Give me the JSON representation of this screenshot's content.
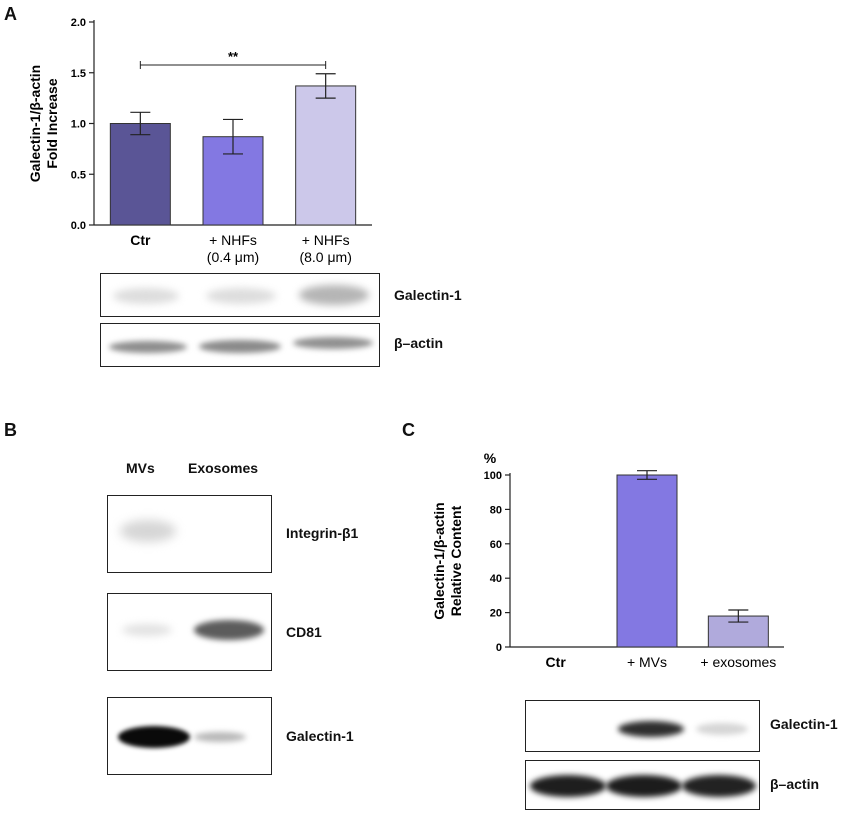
{
  "panels": {
    "a": {
      "letter": "A",
      "blot_labels": [
        "Galectin-1",
        "β–actin"
      ]
    },
    "b": {
      "letter": "B",
      "lane_labels": [
        "MVs",
        "Exosomes"
      ],
      "blot_labels": [
        "Integrin-β1",
        "CD81",
        "Galectin-1"
      ]
    },
    "c": {
      "letter": "C",
      "blot_labels": [
        "Galectin-1",
        "β–actin"
      ]
    }
  },
  "chart_data": [
    {
      "type": "bar",
      "panel": "A",
      "ylabel": "Galectin-1/β-actin Fold Increase",
      "ylabel_lines": [
        "Galectin-1/β-actin",
        "Fold Increase"
      ],
      "categories": [
        "Ctr",
        "+ NHFs (0.4 μm)",
        "+ NHFs (8.0 μm)"
      ],
      "category_lines": [
        [
          "Ctr"
        ],
        [
          "+ NHFs",
          "(0.4 μm)"
        ],
        [
          "+ NHFs",
          "(8.0 μm)"
        ]
      ],
      "values": [
        1.0,
        0.87,
        1.37
      ],
      "errors": [
        0.11,
        0.17,
        0.12
      ],
      "ylim": [
        0,
        2.0
      ],
      "yticks": [
        "0.0",
        "0.5",
        "1.0",
        "1.5",
        "2.0"
      ],
      "significance": {
        "from": 0,
        "to": 2,
        "label": "**"
      },
      "colors": [
        "#5a5596",
        "#8378e2",
        "#ccc8ea"
      ]
    },
    {
      "type": "bar",
      "panel": "C",
      "ylabel": "Galectin-1/β-actin Relative Content",
      "ylabel_lines": [
        "Galectin-1/β-actin",
        "Relative Content"
      ],
      "yunit": "%",
      "categories": [
        "Ctr",
        "+ MVs",
        "+ exosomes"
      ],
      "category_lines": [
        [
          "Ctr"
        ],
        [
          "+ MVs"
        ],
        [
          "+ exosomes"
        ]
      ],
      "values": [
        0,
        100,
        18
      ],
      "errors": [
        0,
        2.5,
        3.5
      ],
      "ylim": [
        0,
        100
      ],
      "yticks": [
        "0",
        "20",
        "40",
        "60",
        "80",
        "100"
      ],
      "colors": [
        "#8378e2",
        "#8378e2",
        "#b0aadc"
      ]
    }
  ]
}
